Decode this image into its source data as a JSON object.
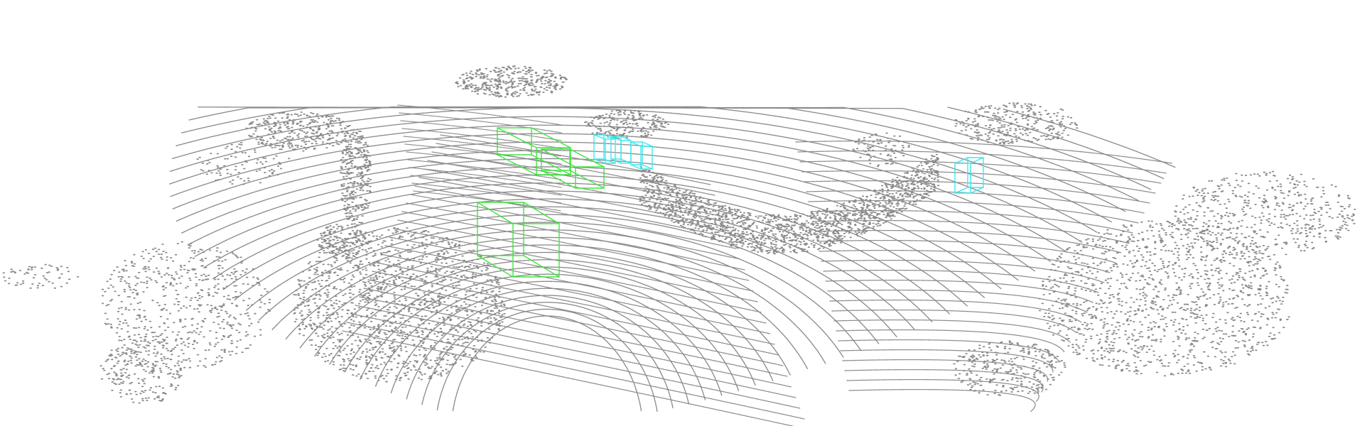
{
  "colors": {
    "background": "#ffffff",
    "points": "#8a8a8a",
    "box_class_a": "#3ee63e",
    "box_class_b": "#3ee8ee"
  },
  "boxes": [
    {
      "class": "green",
      "color": "#3ee63e"
    },
    {
      "class": "green",
      "color": "#3ee63e"
    },
    {
      "class": "green",
      "color": "#3ee63e"
    },
    {
      "class": "cyan",
      "color": "#3ee8ee"
    },
    {
      "class": "cyan",
      "color": "#3ee8ee"
    },
    {
      "class": "cyan",
      "color": "#3ee8ee"
    },
    {
      "class": "cyan",
      "color": "#3ee8ee"
    }
  ]
}
